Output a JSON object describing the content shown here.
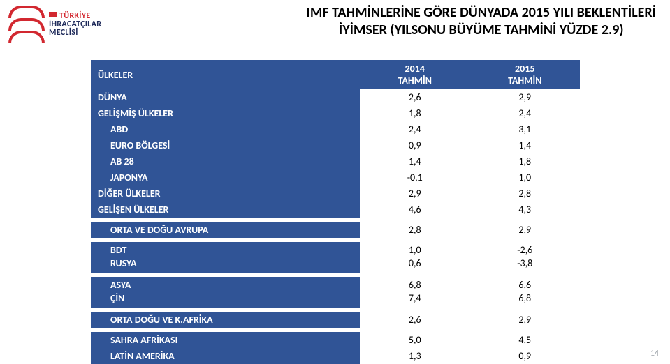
{
  "logo": {
    "line1": "TÜRKİYE",
    "line2": "İHRACATÇILAR",
    "line3": "MECLİSİ"
  },
  "title": {
    "line1": "IMF TAHMİNLERİNE GÖRE DÜNYADA 2015 YILI BEKLENTİLERİ",
    "line2": "İYİMSER (YILSONU BÜYÜME TAHMİNİ YÜZDE 2.9)"
  },
  "columns": {
    "label": "ÜLKELER",
    "c2014": "2014\nTAHMİN",
    "c2015": "2015\nTAHMİN"
  },
  "rows": {
    "dunya": {
      "label": "DÜNYA",
      "v2014": "2,6",
      "v2015": "2,9"
    },
    "gelismis": {
      "label": "GELİŞMİŞ ÜLKELER",
      "v2014": "1,8",
      "v2015": "2,4"
    },
    "abd": {
      "label": "ABD",
      "v2014": "2,4",
      "v2015": "3,1"
    },
    "euro": {
      "label": "EURO BÖLGESİ",
      "v2014": "0,9",
      "v2015": "1,4"
    },
    "ab28": {
      "label": "AB 28",
      "v2014": "1,4",
      "v2015": "1,8"
    },
    "japonya": {
      "label": "JAPONYA",
      "v2014": "-0,1",
      "v2015": "1,0"
    },
    "diger": {
      "label": "DİĞER ÜLKELER",
      "v2014": "2,9",
      "v2015": "2,8"
    },
    "gelisen": {
      "label": "GELİŞEN ÜLKELER",
      "v2014": "4,6",
      "v2015": "4,3"
    },
    "oda": {
      "label": "ORTA VE DOĞU AVRUPA",
      "v2014": "2,8",
      "v2015": "2,9"
    },
    "bdt_rusya": {
      "label": "BDT\nRUSYA",
      "v2014": "1,0\n0,6",
      "v2015": "-2,6\n-3,8"
    },
    "asya_cin": {
      "label": "ASYA\nÇİN",
      "v2014": "6,8\n7,4",
      "v2015": "6,6\n6,8"
    },
    "odk_afrika": {
      "label": "ORTA DOĞU VE K.AFRİKA",
      "v2014": "2,6",
      "v2015": "2,9"
    },
    "sahra": {
      "label": "SAHRA AFRİKASI",
      "v2014": "5,0",
      "v2015": "4,5"
    },
    "latin": {
      "label": "LATİN AMERİKA",
      "v2014": "1,3",
      "v2015": "0,9"
    }
  },
  "page_number": "14",
  "style": {
    "header_bg": "#305496",
    "header_fg": "#ffffff",
    "accent_red": "#d22830",
    "accent_navy": "#1e2a5a",
    "page_num_color": "#9aa1a7",
    "font_family": "Calibri",
    "title_fontsize_pt": 15,
    "table_fontsize_pt": 10.5,
    "col_widths_pct": [
      55,
      22.5,
      22.5
    ]
  }
}
